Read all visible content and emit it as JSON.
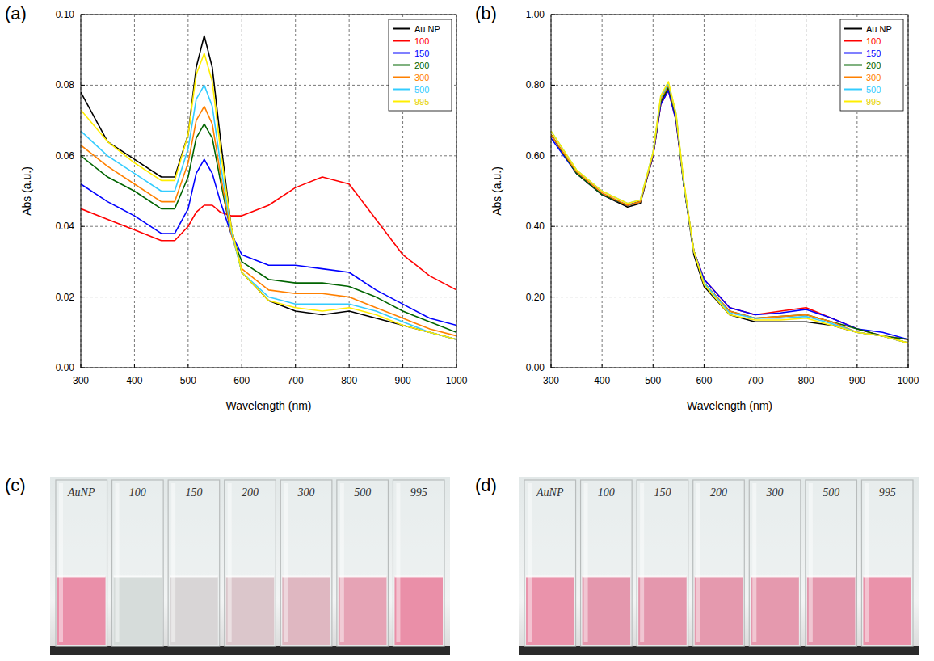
{
  "chart_data": [
    {
      "type": "line",
      "panel_label": "(a)",
      "x_label": "Wavelength (nm)",
      "y_label": "Abs (a.u.)",
      "x": [
        300,
        350,
        400,
        450,
        475,
        500,
        515,
        530,
        545,
        560,
        580,
        600,
        650,
        700,
        750,
        800,
        850,
        900,
        950,
        1000
      ],
      "xlim": [
        300,
        1000
      ],
      "xticks": [
        300,
        400,
        500,
        600,
        700,
        800,
        900,
        1000
      ],
      "ylim": [
        0,
        0.1
      ],
      "yticks": [
        {
          "value": 0,
          "label": "0.00"
        },
        {
          "value": 0.02,
          "label": "0.02"
        },
        {
          "value": 0.04,
          "label": "0.04"
        },
        {
          "value": 0.06,
          "label": "0.06"
        },
        {
          "value": 0.08,
          "label": "0.08"
        },
        {
          "value": 0.1,
          "label": "0.10"
        }
      ],
      "grid": true,
      "legend": "top-right",
      "series": [
        {
          "name": "Au NP",
          "color": "#000000",
          "values": [
            0.078,
            0.064,
            0.059,
            0.054,
            0.054,
            0.066,
            0.085,
            0.094,
            0.085,
            0.065,
            0.04,
            0.027,
            0.019,
            0.016,
            0.015,
            0.016,
            0.014,
            0.012,
            0.01,
            0.008
          ]
        },
        {
          "name": "100",
          "color": "#ff0000",
          "values": [
            0.045,
            0.042,
            0.039,
            0.036,
            0.036,
            0.04,
            0.044,
            0.046,
            0.046,
            0.044,
            0.043,
            0.043,
            0.046,
            0.051,
            0.054,
            0.052,
            0.042,
            0.032,
            0.026,
            0.022
          ]
        },
        {
          "name": "150",
          "color": "#0000ff",
          "values": [
            0.052,
            0.047,
            0.043,
            0.038,
            0.038,
            0.045,
            0.055,
            0.059,
            0.055,
            0.047,
            0.038,
            0.032,
            0.029,
            0.029,
            0.028,
            0.027,
            0.022,
            0.018,
            0.014,
            0.012
          ]
        },
        {
          "name": "200",
          "color": "#006400",
          "values": [
            0.06,
            0.054,
            0.05,
            0.045,
            0.045,
            0.054,
            0.065,
            0.069,
            0.065,
            0.053,
            0.038,
            0.03,
            0.025,
            0.024,
            0.024,
            0.023,
            0.02,
            0.016,
            0.013,
            0.01
          ]
        },
        {
          "name": "300",
          "color": "#ff8000",
          "values": [
            0.063,
            0.057,
            0.052,
            0.047,
            0.047,
            0.058,
            0.07,
            0.074,
            0.069,
            0.055,
            0.038,
            0.028,
            0.022,
            0.021,
            0.021,
            0.02,
            0.017,
            0.014,
            0.011,
            0.009
          ]
        },
        {
          "name": "500",
          "color": "#33ccff",
          "values": [
            0.067,
            0.06,
            0.055,
            0.05,
            0.05,
            0.062,
            0.076,
            0.08,
            0.074,
            0.058,
            0.039,
            0.027,
            0.02,
            0.018,
            0.018,
            0.018,
            0.016,
            0.013,
            0.01,
            0.008
          ]
        },
        {
          "name": "995",
          "color": "#ffee00",
          "values": [
            0.073,
            0.064,
            0.058,
            0.053,
            0.053,
            0.066,
            0.083,
            0.089,
            0.081,
            0.062,
            0.04,
            0.027,
            0.019,
            0.017,
            0.016,
            0.017,
            0.015,
            0.012,
            0.01,
            0.008
          ]
        }
      ]
    },
    {
      "type": "line",
      "panel_label": "(b)",
      "x_label": "Wavelength (nm)",
      "y_label": "Abs (a.u.)",
      "x": [
        300,
        350,
        400,
        450,
        475,
        500,
        515,
        530,
        545,
        560,
        580,
        600,
        650,
        700,
        750,
        800,
        850,
        900,
        950,
        1000
      ],
      "xlim": [
        300,
        1000
      ],
      "xticks": [
        300,
        400,
        500,
        600,
        700,
        800,
        900,
        1000
      ],
      "ylim": [
        0,
        1
      ],
      "yticks": [
        {
          "value": 0,
          "label": "0.00"
        },
        {
          "value": 0.2,
          "label": "0.20"
        },
        {
          "value": 0.4,
          "label": "0.40"
        },
        {
          "value": 0.6,
          "label": "0.60"
        },
        {
          "value": 0.8,
          "label": "0.80"
        },
        {
          "value": 1,
          "label": "1.00"
        }
      ],
      "grid": true,
      "legend": "top-right",
      "series": [
        {
          "name": "Au NP",
          "color": "#000000",
          "values": [
            0.66,
            0.55,
            0.49,
            0.455,
            0.465,
            0.6,
            0.75,
            0.79,
            0.71,
            0.52,
            0.32,
            0.23,
            0.15,
            0.13,
            0.13,
            0.13,
            0.12,
            0.1,
            0.09,
            0.07
          ]
        },
        {
          "name": "100",
          "color": "#ff0000",
          "values": [
            0.66,
            0.55,
            0.49,
            0.46,
            0.47,
            0.6,
            0.745,
            0.785,
            0.7,
            0.52,
            0.33,
            0.25,
            0.17,
            0.15,
            0.16,
            0.17,
            0.14,
            0.11,
            0.09,
            0.08
          ]
        },
        {
          "name": "150",
          "color": "#0000ff",
          "values": [
            0.65,
            0.55,
            0.49,
            0.46,
            0.47,
            0.6,
            0.745,
            0.785,
            0.7,
            0.52,
            0.33,
            0.25,
            0.17,
            0.15,
            0.155,
            0.165,
            0.14,
            0.11,
            0.1,
            0.08
          ]
        },
        {
          "name": "200",
          "color": "#006400",
          "values": [
            0.66,
            0.55,
            0.49,
            0.46,
            0.47,
            0.605,
            0.755,
            0.795,
            0.71,
            0.52,
            0.33,
            0.24,
            0.16,
            0.14,
            0.145,
            0.15,
            0.13,
            0.11,
            0.09,
            0.08
          ]
        },
        {
          "name": "300",
          "color": "#ff8000",
          "values": [
            0.66,
            0.555,
            0.495,
            0.46,
            0.47,
            0.605,
            0.76,
            0.8,
            0.715,
            0.525,
            0.33,
            0.24,
            0.16,
            0.14,
            0.145,
            0.15,
            0.13,
            0.1,
            0.09,
            0.07
          ]
        },
        {
          "name": "500",
          "color": "#33ccff",
          "values": [
            0.67,
            0.56,
            0.5,
            0.465,
            0.475,
            0.61,
            0.765,
            0.805,
            0.72,
            0.525,
            0.33,
            0.24,
            0.155,
            0.14,
            0.14,
            0.145,
            0.125,
            0.1,
            0.09,
            0.07
          ]
        },
        {
          "name": "995",
          "color": "#ffee00",
          "values": [
            0.67,
            0.56,
            0.5,
            0.465,
            0.475,
            0.61,
            0.77,
            0.81,
            0.72,
            0.53,
            0.33,
            0.235,
            0.15,
            0.135,
            0.135,
            0.14,
            0.12,
            0.1,
            0.09,
            0.07
          ]
        }
      ]
    }
  ],
  "photos": [
    {
      "panel_label": "(c)",
      "cuvettes": [
        "AuNP",
        "100",
        "150",
        "200",
        "300",
        "500",
        "995"
      ],
      "colors": [
        "#ea8fa9",
        "#d6dcda",
        "#d8d5d6",
        "#dbc6cb",
        "#dfb7c1",
        "#e6a3b5",
        "#ea8fa8"
      ]
    },
    {
      "panel_label": "(d)",
      "cuvettes": [
        "AuNP",
        "100",
        "150",
        "200",
        "300",
        "500",
        "995"
      ],
      "colors": [
        "#ea93ab",
        "#e497ad",
        "#e497ad",
        "#e599ae",
        "#e599ae",
        "#e497ad",
        "#ea92aa"
      ]
    }
  ]
}
